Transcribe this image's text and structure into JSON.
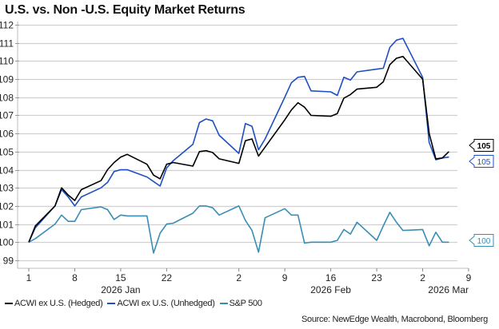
{
  "chart_data": {
    "type": "line",
    "title": "U.S. vs. Non -U.S. Equity Market Returns",
    "xlabel": "",
    "ylabel": "",
    "ylim": [
      99,
      112
    ],
    "yticks": [
      99,
      100,
      101,
      102,
      103,
      104,
      105,
      106,
      107,
      108,
      109,
      110,
      111,
      112
    ],
    "xlim_days": [
      0,
      67
    ],
    "xticks": [
      {
        "day": 0,
        "label": "1"
      },
      {
        "day": 7,
        "label": "8"
      },
      {
        "day": 14,
        "label": "15"
      },
      {
        "day": 21,
        "label": "22"
      },
      {
        "day": 32,
        "label": "2"
      },
      {
        "day": 39,
        "label": "9"
      },
      {
        "day": 46,
        "label": "16"
      },
      {
        "day": 53,
        "label": "23"
      },
      {
        "day": 60,
        "label": "2"
      },
      {
        "day": 67,
        "label": "9"
      }
    ],
    "month_labels": [
      {
        "day": 14,
        "label": "2026 Jan"
      },
      {
        "day": 46,
        "label": "2026 Feb"
      },
      {
        "day": 63,
        "label": "2026 Mar"
      }
    ],
    "grid": true,
    "legend_position": "bottom-left",
    "x": [
      0,
      1,
      4,
      5,
      6,
      7,
      8,
      11,
      12,
      13,
      14,
      15,
      18,
      19,
      20,
      21,
      22,
      25,
      26,
      27,
      28,
      29,
      32,
      33,
      34,
      35,
      36,
      39,
      40,
      41,
      42,
      43,
      46,
      47,
      48,
      49,
      50,
      53,
      54,
      55,
      56,
      57,
      60,
      61,
      62,
      63,
      64
    ],
    "x_dates": [
      "2026-01-01",
      "2026-01-02",
      "2026-01-05",
      "2026-01-06",
      "2026-01-07",
      "2026-01-08",
      "2026-01-09",
      "2026-01-12",
      "2026-01-13",
      "2026-01-14",
      "2026-01-15",
      "2026-01-16",
      "2026-01-19",
      "2026-01-20",
      "2026-01-21",
      "2026-01-22",
      "2026-01-23",
      "2026-01-26",
      "2026-01-27",
      "2026-01-28",
      "2026-01-29",
      "2026-01-30",
      "2026-02-02",
      "2026-02-03",
      "2026-02-04",
      "2026-02-05",
      "2026-02-06",
      "2026-02-09",
      "2026-02-10",
      "2026-02-11",
      "2026-02-12",
      "2026-02-13",
      "2026-02-16",
      "2026-02-17",
      "2026-02-18",
      "2026-02-19",
      "2026-02-20",
      "2026-02-23",
      "2026-02-24",
      "2026-02-25",
      "2026-02-26",
      "2026-02-27",
      "2026-03-02",
      "2026-03-03",
      "2026-03-04",
      "2026-03-05",
      "2026-03-06"
    ],
    "series": [
      {
        "name": "ACWI ex U.S. (Hedged)",
        "color": "#000000",
        "end_label": "105",
        "values": [
          100.0,
          100.9,
          102.0,
          103.0,
          102.6,
          102.3,
          102.9,
          103.4,
          104.0,
          104.4,
          104.7,
          104.85,
          104.3,
          103.7,
          103.5,
          104.3,
          104.4,
          104.2,
          105.0,
          105.05,
          104.95,
          104.6,
          104.35,
          105.6,
          105.7,
          104.75,
          105.25,
          106.75,
          107.3,
          107.7,
          107.45,
          107.0,
          106.95,
          107.1,
          107.95,
          108.15,
          108.45,
          108.55,
          108.85,
          109.8,
          110.15,
          110.25,
          109.0,
          106.0,
          104.6,
          104.65,
          105.0
        ]
      },
      {
        "name": "ACWI ex U.S. (Unhedged)",
        "color": "#1F4FC4",
        "end_label": "105",
        "values": [
          100.0,
          100.8,
          102.0,
          102.9,
          102.5,
          102.0,
          102.5,
          103.0,
          103.3,
          103.9,
          104.0,
          104.0,
          103.6,
          103.35,
          103.1,
          104.1,
          104.5,
          105.4,
          106.6,
          106.8,
          106.7,
          105.9,
          104.9,
          106.55,
          106.4,
          105.1,
          105.7,
          108.0,
          108.8,
          109.1,
          109.15,
          108.35,
          108.3,
          108.1,
          109.1,
          108.95,
          109.4,
          109.55,
          109.6,
          110.75,
          111.15,
          111.25,
          109.1,
          105.5,
          104.55,
          104.65,
          104.7
        ]
      },
      {
        "name": "S&P 500",
        "color": "#3A8DB5",
        "end_label": "100",
        "values": [
          100.0,
          100.2,
          101.0,
          101.5,
          101.15,
          101.15,
          101.8,
          101.95,
          101.8,
          101.25,
          101.5,
          101.45,
          101.45,
          99.4,
          100.5,
          101.0,
          101.05,
          101.6,
          102.0,
          102.0,
          101.9,
          101.5,
          102.0,
          101.2,
          100.65,
          99.45,
          101.35,
          101.85,
          101.5,
          101.5,
          99.95,
          100.0,
          100.0,
          100.1,
          100.7,
          100.45,
          101.1,
          100.1,
          100.9,
          101.65,
          101.1,
          100.65,
          100.7,
          99.8,
          100.55,
          100.0,
          100.0
        ]
      }
    ]
  },
  "legend": {
    "items": [
      {
        "label": "ACWI ex U.S. (Hedged)",
        "color": "#000000"
      },
      {
        "label": "ACWI ex U.S. (Unhedged)",
        "color": "#1F4FC4"
      },
      {
        "label": "S&P 500",
        "color": "#3A8DB5"
      }
    ]
  },
  "source_note": "Source: NewEdge Wealth, Macrobond, Bloomberg"
}
